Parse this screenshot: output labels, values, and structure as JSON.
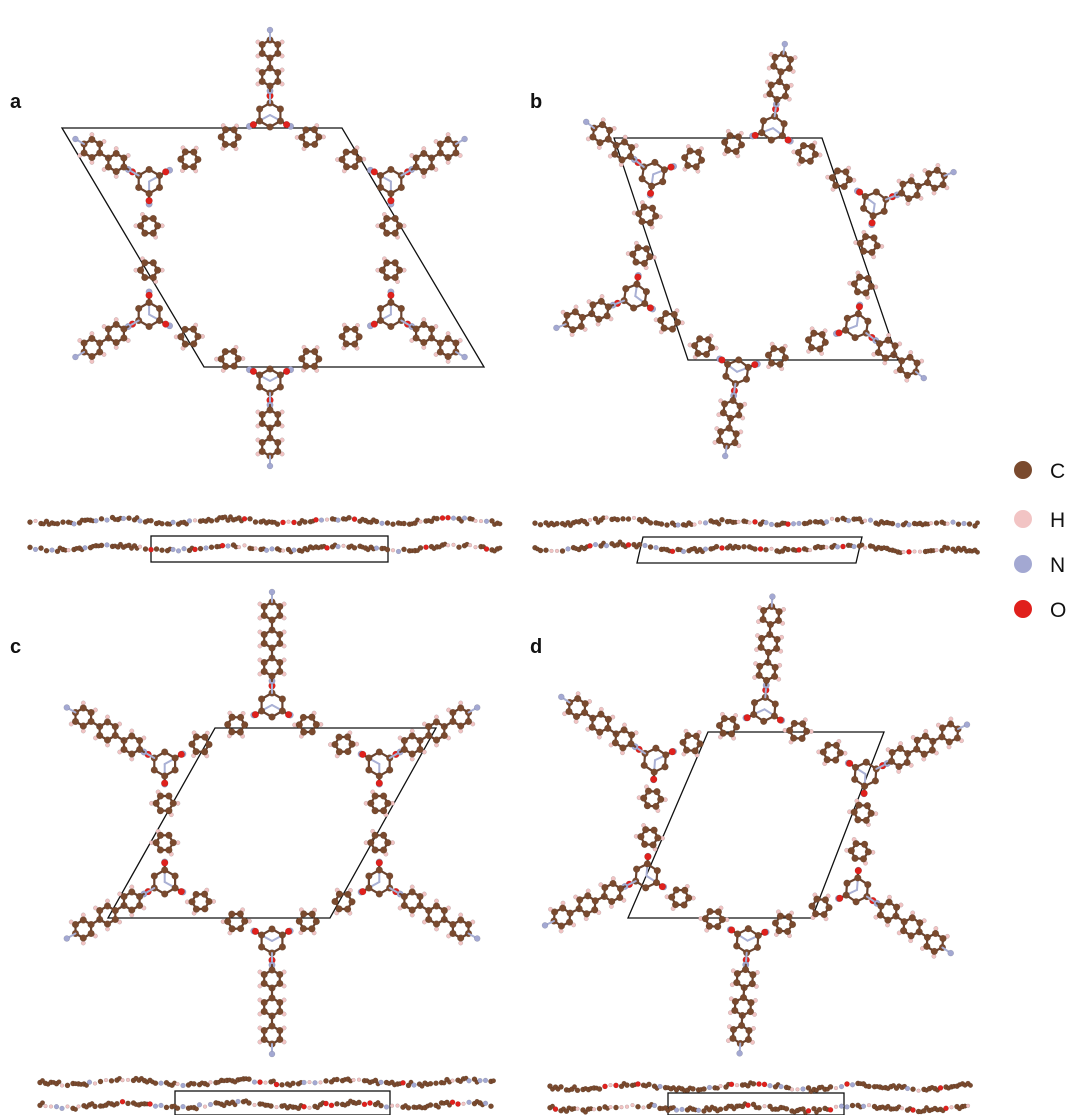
{
  "figure": {
    "panels": [
      {
        "id": "a",
        "label": "a"
      },
      {
        "id": "b",
        "label": "b"
      },
      {
        "id": "c",
        "label": "c"
      },
      {
        "id": "d",
        "label": "d"
      }
    ],
    "legend": [
      {
        "symbol": "C",
        "color": "#7a4a2e"
      },
      {
        "symbol": "H",
        "color": "#f2c4c4"
      },
      {
        "symbol": "N",
        "color": "#a3a8d2"
      },
      {
        "symbol": "O",
        "color": "#e0201c"
      }
    ]
  }
}
